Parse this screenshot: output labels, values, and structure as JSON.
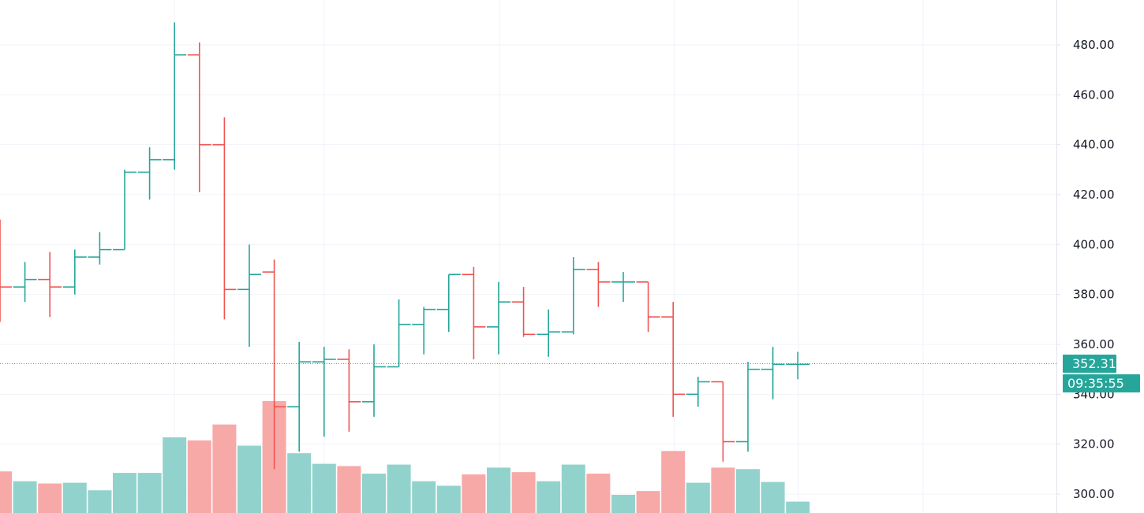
{
  "chart_data": {
    "type": "ohlc-bar",
    "y_axis": {
      "ticks": [
        "300.00",
        "320.00",
        "340.00",
        "360.00",
        "380.00",
        "400.00",
        "420.00",
        "440.00",
        "460.00",
        "480.00"
      ],
      "ylim": [
        294,
        500
      ]
    },
    "grid": true,
    "current_price": {
      "value": 352.31,
      "label": "352.31",
      "countdown": "09:35:55"
    },
    "colors": {
      "up": "#26a69a",
      "down": "#ef5350",
      "volume_up": "#92d2cc",
      "volume_down": "#f7a9a7",
      "grid": "#f0f3fa",
      "axis_border": "#e0e3eb"
    },
    "bars": [
      {
        "o": 410,
        "h": 410,
        "l": 369,
        "c": 383,
        "dir": "down"
      },
      {
        "o": 383,
        "h": 393,
        "l": 377,
        "c": 386,
        "dir": "up"
      },
      {
        "o": 386,
        "h": 397,
        "l": 371,
        "c": 383,
        "dir": "down"
      },
      {
        "o": 383,
        "h": 398,
        "l": 380,
        "c": 395,
        "dir": "up"
      },
      {
        "o": 395,
        "h": 405,
        "l": 392,
        "c": 398,
        "dir": "up"
      },
      {
        "o": 398,
        "h": 430,
        "l": 398,
        "c": 429,
        "dir": "up"
      },
      {
        "o": 429,
        "h": 439,
        "l": 418,
        "c": 434,
        "dir": "up"
      },
      {
        "o": 434,
        "h": 489,
        "l": 430,
        "c": 476,
        "dir": "up"
      },
      {
        "o": 476,
        "h": 481,
        "l": 421,
        "c": 440,
        "dir": "down"
      },
      {
        "o": 440,
        "h": 451,
        "l": 370,
        "c": 382,
        "dir": "down"
      },
      {
        "o": 382,
        "h": 400,
        "l": 359,
        "c": 388,
        "dir": "up"
      },
      {
        "o": 389,
        "h": 394,
        "l": 310,
        "c": 335,
        "dir": "down"
      },
      {
        "o": 335,
        "h": 361,
        "l": 317,
        "c": 353,
        "dir": "up"
      },
      {
        "o": 353,
        "h": 359,
        "l": 323,
        "c": 354,
        "dir": "up"
      },
      {
        "o": 354,
        "h": 358,
        "l": 325,
        "c": 337,
        "dir": "down"
      },
      {
        "o": 337,
        "h": 360,
        "l": 331,
        "c": 351,
        "dir": "up"
      },
      {
        "o": 351,
        "h": 378,
        "l": 351,
        "c": 368,
        "dir": "up"
      },
      {
        "o": 368,
        "h": 375,
        "l": 356,
        "c": 374,
        "dir": "up"
      },
      {
        "o": 374,
        "h": 388,
        "l": 365,
        "c": 388,
        "dir": "up"
      },
      {
        "o": 388,
        "h": 391,
        "l": 354,
        "c": 367,
        "dir": "down"
      },
      {
        "o": 367,
        "h": 385,
        "l": 356,
        "c": 377,
        "dir": "up"
      },
      {
        "o": 377,
        "h": 383,
        "l": 363,
        "c": 364,
        "dir": "down"
      },
      {
        "o": 364,
        "h": 374,
        "l": 355,
        "c": 365,
        "dir": "up"
      },
      {
        "o": 365,
        "h": 395,
        "l": 364,
        "c": 390,
        "dir": "up"
      },
      {
        "o": 390,
        "h": 393,
        "l": 375,
        "c": 385,
        "dir": "down"
      },
      {
        "o": 385,
        "h": 389,
        "l": 377,
        "c": 385,
        "dir": "up"
      },
      {
        "o": 385,
        "h": 385,
        "l": 365,
        "c": 371,
        "dir": "down"
      },
      {
        "o": 371,
        "h": 377,
        "l": 331,
        "c": 340,
        "dir": "down"
      },
      {
        "o": 340,
        "h": 347,
        "l": 335,
        "c": 345,
        "dir": "up"
      },
      {
        "o": 345,
        "h": 345,
        "l": 313,
        "c": 321,
        "dir": "down"
      },
      {
        "o": 321,
        "h": 353,
        "l": 317,
        "c": 350,
        "dir": "up"
      },
      {
        "o": 350,
        "h": 359,
        "l": 338,
        "c": 352,
        "dir": "up"
      },
      {
        "o": 352,
        "h": 357,
        "l": 346,
        "c": 352,
        "dir": "up"
      }
    ],
    "volume": [
      0.55,
      0.42,
      0.39,
      0.4,
      0.3,
      0.53,
      0.53,
      1.0,
      0.96,
      1.17,
      0.89,
      1.48,
      0.79,
      0.65,
      0.62,
      0.52,
      0.64,
      0.42,
      0.36,
      0.51,
      0.6,
      0.54,
      0.42,
      0.64,
      0.52,
      0.24,
      0.29,
      0.82,
      0.4,
      0.6,
      0.58,
      0.41,
      0.15
    ]
  }
}
